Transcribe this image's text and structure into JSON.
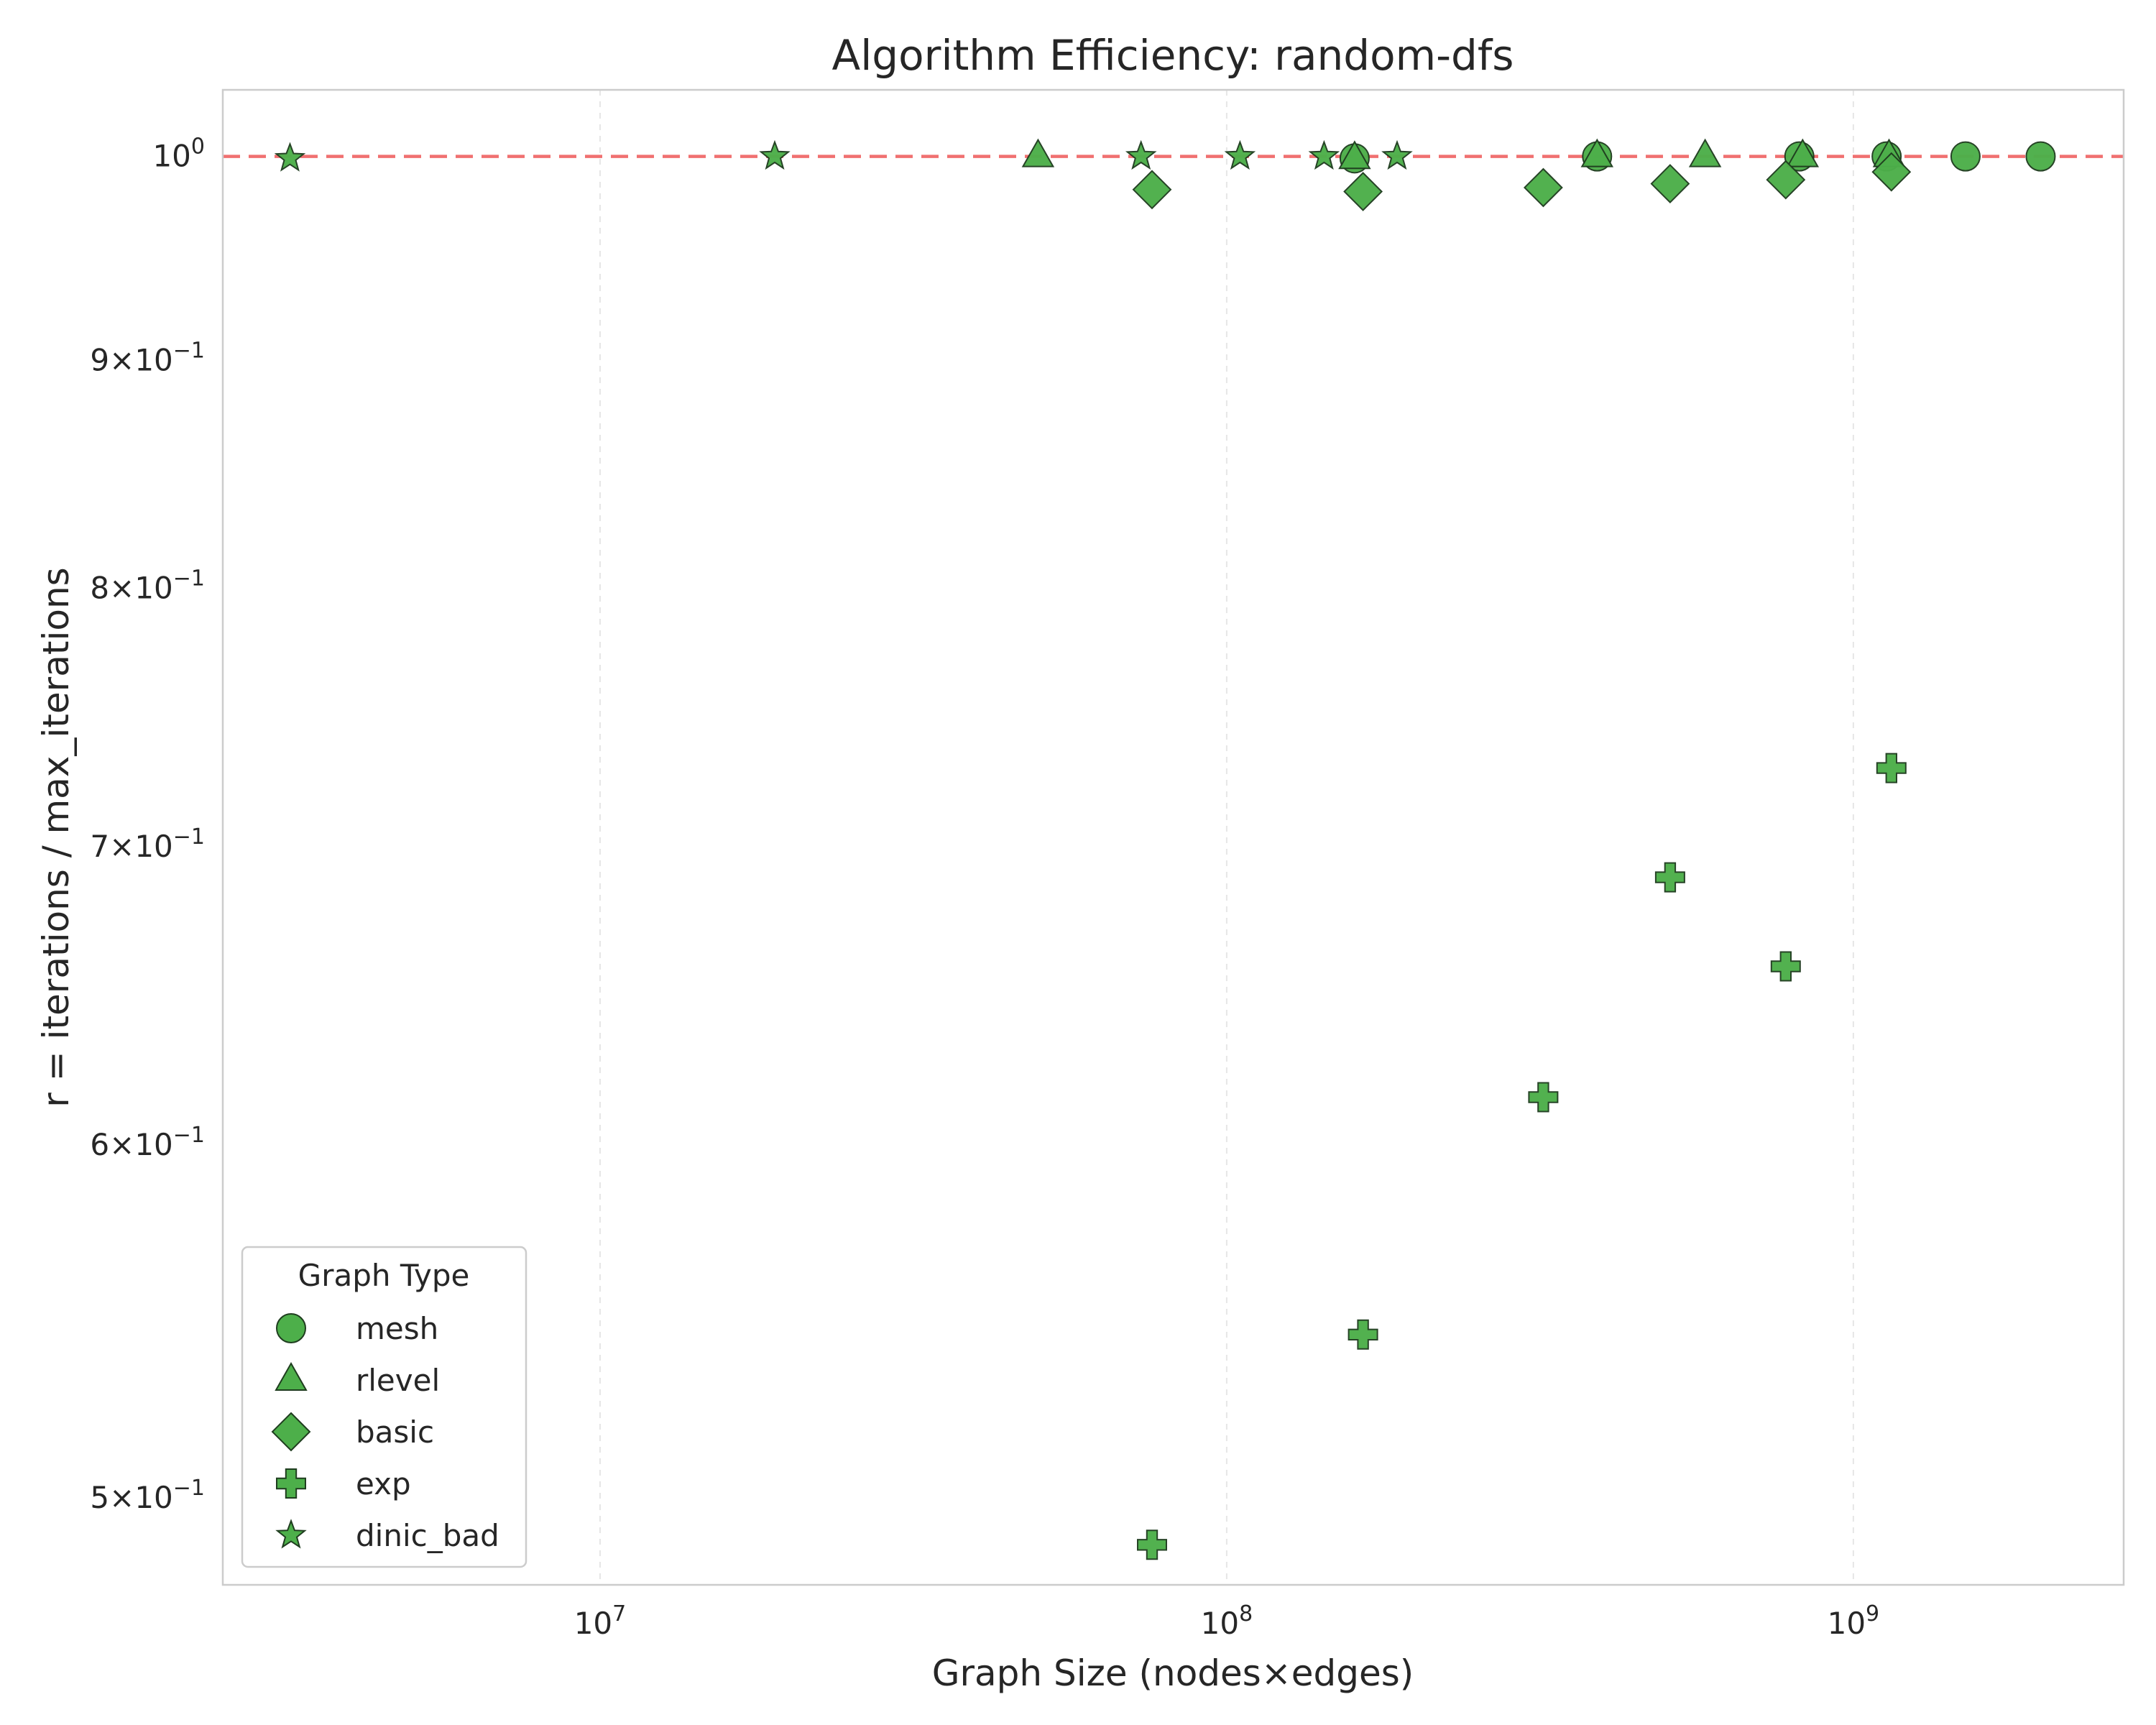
{
  "chart_data": {
    "type": "scatter",
    "title": "Algorithm Efficiency: random-dfs",
    "xlabel": "Graph Size (nodes×edges)",
    "ylabel": "r = iterations / max_iterations",
    "xscale": "log",
    "yscale": "log",
    "xlim": [
      2500000,
      2700000000
    ],
    "ylim": [
      0.478,
      1.035
    ],
    "x_ticks": [
      {
        "value": 10000000,
        "base": "10",
        "exp": "7"
      },
      {
        "value": 100000000,
        "base": "10",
        "exp": "8"
      },
      {
        "value": 1000000000,
        "base": "10",
        "exp": "9"
      }
    ],
    "y_ticks": [
      {
        "value": 1.0,
        "mant": "",
        "base": "10",
        "exp": "0"
      },
      {
        "value": 0.9,
        "mant": "9×",
        "base": "10",
        "exp": "−1"
      },
      {
        "value": 0.8,
        "mant": "8×",
        "base": "10",
        "exp": "−1"
      },
      {
        "value": 0.7,
        "mant": "7×",
        "base": "10",
        "exp": "−1"
      },
      {
        "value": 0.6,
        "mant": "6×",
        "base": "10",
        "exp": "−1"
      },
      {
        "value": 0.5,
        "mant": "5×",
        "base": "10",
        "exp": "−1"
      }
    ],
    "grid": true,
    "reference_line": {
      "y": 1.0,
      "style": "dashed",
      "color": "#f07070"
    },
    "marker_color": "#4daf4a",
    "marker_edge": "#1f3d1f",
    "legend": {
      "title": "Graph Type",
      "placement": "lower-left"
    },
    "series": [
      {
        "name": "mesh",
        "marker": "circle",
        "points": [
          {
            "x": 160000000,
            "y": 0.999
          },
          {
            "x": 390000000,
            "y": 1.0
          },
          {
            "x": 820000000,
            "y": 1.0
          },
          {
            "x": 1130000000,
            "y": 1.0
          },
          {
            "x": 1510000000,
            "y": 1.0
          },
          {
            "x": 1990000000,
            "y": 1.0
          }
        ]
      },
      {
        "name": "rlevel",
        "marker": "triangle",
        "points": [
          {
            "x": 50000000,
            "y": 1.0
          },
          {
            "x": 160000000,
            "y": 0.999
          },
          {
            "x": 390000000,
            "y": 1.0
          },
          {
            "x": 580000000,
            "y": 1.0
          },
          {
            "x": 830000000,
            "y": 1.0
          },
          {
            "x": 1140000000,
            "y": 1.0
          }
        ]
      },
      {
        "name": "basic",
        "marker": "diamond",
        "points": [
          {
            "x": 76000000,
            "y": 0.983
          },
          {
            "x": 165000000,
            "y": 0.982
          },
          {
            "x": 320000000,
            "y": 0.984
          },
          {
            "x": 510000000,
            "y": 0.986
          },
          {
            "x": 780000000,
            "y": 0.988
          },
          {
            "x": 1150000000,
            "y": 0.992
          }
        ]
      },
      {
        "name": "exp",
        "marker": "plus",
        "points": [
          {
            "x": 76000000,
            "y": 0.488
          },
          {
            "x": 165000000,
            "y": 0.544
          },
          {
            "x": 320000000,
            "y": 0.615
          },
          {
            "x": 510000000,
            "y": 0.689
          },
          {
            "x": 780000000,
            "y": 0.658
          },
          {
            "x": 1150000000,
            "y": 0.729
          }
        ]
      },
      {
        "name": "dinic_bad",
        "marker": "star",
        "points": [
          {
            "x": 3200000,
            "y": 0.999
          },
          {
            "x": 19000000,
            "y": 1.0
          },
          {
            "x": 73000000,
            "y": 1.0
          },
          {
            "x": 105000000,
            "y": 1.0
          },
          {
            "x": 143000000,
            "y": 1.0
          },
          {
            "x": 187000000,
            "y": 1.0
          }
        ]
      }
    ]
  }
}
